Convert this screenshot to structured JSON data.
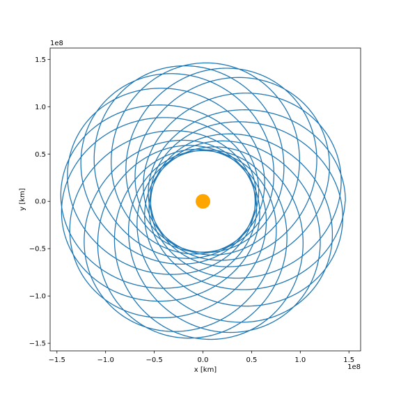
{
  "chart_data": {
    "type": "line",
    "title": "",
    "xlabel": "x [km]",
    "ylabel": "y [km]",
    "x_offset_label": "1e8",
    "y_offset_label": "1e8",
    "xlim": [
      -1.57,
      1.62
    ],
    "ylim": [
      -1.58,
      1.62
    ],
    "grid": false,
    "legend": "none",
    "xticks": [
      -1.5,
      -1.0,
      -0.5,
      0.0,
      0.5,
      1.0,
      1.5
    ],
    "xtick_labels": [
      "−1.5",
      "−1.0",
      "−0.5",
      "0.0",
      "0.5",
      "1.0",
      "1.5"
    ],
    "yticks": [
      -1.5,
      -1.0,
      -0.5,
      0.0,
      0.5,
      1.0,
      1.5
    ],
    "ytick_labels": [
      "−1.5",
      "−1.0",
      "−0.5",
      "0.0",
      "0.5",
      "1.0",
      "1.5"
    ],
    "series": [
      {
        "values": {
          "kind": "precessing-orbit-rosette",
          "semi_major_axis": 1.0,
          "eccentricity": 0.464,
          "start_true_anomaly_deg": 180,
          "precession_per_orbit_deg": 54.2,
          "orbit_count": 20
        },
        "color": "#1f77b4"
      }
    ],
    "central_body": {
      "x": 0.0,
      "y": 0.0,
      "color": "#ffa500"
    }
  }
}
